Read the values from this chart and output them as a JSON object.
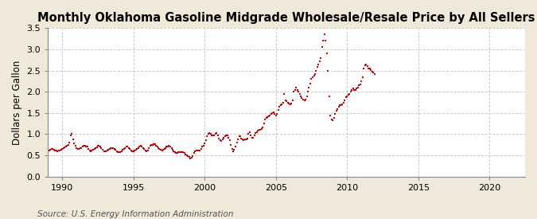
{
  "title": "Monthly Oklahoma Gasoline Midgrade Wholesale/Resale Price by All Sellers",
  "ylabel": "Dollars per Gallon",
  "source": "Source: U.S. Energy Information Administration",
  "xlim": [
    1989.0,
    2022.5
  ],
  "ylim": [
    0.0,
    3.5
  ],
  "xticks": [
    1990,
    1995,
    2000,
    2005,
    2010,
    2015,
    2020
  ],
  "yticks": [
    0.0,
    0.5,
    1.0,
    1.5,
    2.0,
    2.5,
    3.0,
    3.5
  ],
  "plot_bg_color": "#FFFFFF",
  "fig_bg_color": "#F0E8D8",
  "marker_color": "#CC0000",
  "marker": "s",
  "marker_size": 4,
  "grid_color": "#AAAAAA",
  "title_fontsize": 10.5,
  "ylabel_fontsize": 8.5,
  "source_fontsize": 7.5,
  "data": [
    [
      1989.08,
      0.62
    ],
    [
      1989.17,
      0.63
    ],
    [
      1989.25,
      0.65
    ],
    [
      1989.33,
      0.65
    ],
    [
      1989.42,
      0.63
    ],
    [
      1989.5,
      0.62
    ],
    [
      1989.58,
      0.62
    ],
    [
      1989.67,
      0.6
    ],
    [
      1989.75,
      0.61
    ],
    [
      1989.83,
      0.61
    ],
    [
      1989.92,
      0.63
    ],
    [
      1990.0,
      0.65
    ],
    [
      1990.08,
      0.68
    ],
    [
      1990.17,
      0.69
    ],
    [
      1990.25,
      0.71
    ],
    [
      1990.33,
      0.73
    ],
    [
      1990.42,
      0.75
    ],
    [
      1990.5,
      0.8
    ],
    [
      1990.58,
      0.98
    ],
    [
      1990.67,
      1.0
    ],
    [
      1990.75,
      0.87
    ],
    [
      1990.83,
      0.78
    ],
    [
      1990.92,
      0.72
    ],
    [
      1991.0,
      0.68
    ],
    [
      1991.08,
      0.66
    ],
    [
      1991.17,
      0.65
    ],
    [
      1991.25,
      0.67
    ],
    [
      1991.33,
      0.68
    ],
    [
      1991.42,
      0.7
    ],
    [
      1991.5,
      0.73
    ],
    [
      1991.58,
      0.73
    ],
    [
      1991.67,
      0.71
    ],
    [
      1991.75,
      0.7
    ],
    [
      1991.83,
      0.66
    ],
    [
      1991.92,
      0.62
    ],
    [
      1992.0,
      0.6
    ],
    [
      1992.08,
      0.62
    ],
    [
      1992.17,
      0.64
    ],
    [
      1992.25,
      0.65
    ],
    [
      1992.33,
      0.67
    ],
    [
      1992.42,
      0.69
    ],
    [
      1992.5,
      0.72
    ],
    [
      1992.58,
      0.72
    ],
    [
      1992.67,
      0.7
    ],
    [
      1992.75,
      0.68
    ],
    [
      1992.83,
      0.64
    ],
    [
      1992.92,
      0.6
    ],
    [
      1993.0,
      0.59
    ],
    [
      1993.08,
      0.6
    ],
    [
      1993.17,
      0.62
    ],
    [
      1993.25,
      0.64
    ],
    [
      1993.33,
      0.66
    ],
    [
      1993.42,
      0.68
    ],
    [
      1993.5,
      0.68
    ],
    [
      1993.58,
      0.68
    ],
    [
      1993.67,
      0.65
    ],
    [
      1993.75,
      0.63
    ],
    [
      1993.83,
      0.6
    ],
    [
      1993.92,
      0.58
    ],
    [
      1994.0,
      0.57
    ],
    [
      1994.08,
      0.58
    ],
    [
      1994.17,
      0.6
    ],
    [
      1994.25,
      0.63
    ],
    [
      1994.33,
      0.65
    ],
    [
      1994.42,
      0.68
    ],
    [
      1994.5,
      0.7
    ],
    [
      1994.58,
      0.7
    ],
    [
      1994.67,
      0.68
    ],
    [
      1994.75,
      0.65
    ],
    [
      1994.83,
      0.62
    ],
    [
      1994.92,
      0.6
    ],
    [
      1995.0,
      0.59
    ],
    [
      1995.08,
      0.61
    ],
    [
      1995.17,
      0.63
    ],
    [
      1995.25,
      0.65
    ],
    [
      1995.33,
      0.67
    ],
    [
      1995.42,
      0.7
    ],
    [
      1995.5,
      0.72
    ],
    [
      1995.58,
      0.71
    ],
    [
      1995.67,
      0.68
    ],
    [
      1995.75,
      0.65
    ],
    [
      1995.83,
      0.61
    ],
    [
      1995.92,
      0.59
    ],
    [
      1996.0,
      0.62
    ],
    [
      1996.08,
      0.67
    ],
    [
      1996.17,
      0.72
    ],
    [
      1996.25,
      0.74
    ],
    [
      1996.33,
      0.75
    ],
    [
      1996.42,
      0.76
    ],
    [
      1996.5,
      0.76
    ],
    [
      1996.58,
      0.73
    ],
    [
      1996.67,
      0.7
    ],
    [
      1996.75,
      0.68
    ],
    [
      1996.83,
      0.66
    ],
    [
      1996.92,
      0.63
    ],
    [
      1997.0,
      0.62
    ],
    [
      1997.08,
      0.64
    ],
    [
      1997.17,
      0.66
    ],
    [
      1997.25,
      0.68
    ],
    [
      1997.33,
      0.7
    ],
    [
      1997.42,
      0.71
    ],
    [
      1997.5,
      0.72
    ],
    [
      1997.58,
      0.7
    ],
    [
      1997.67,
      0.68
    ],
    [
      1997.75,
      0.64
    ],
    [
      1997.83,
      0.6
    ],
    [
      1997.92,
      0.57
    ],
    [
      1998.0,
      0.55
    ],
    [
      1998.08,
      0.55
    ],
    [
      1998.17,
      0.57
    ],
    [
      1998.25,
      0.58
    ],
    [
      1998.33,
      0.57
    ],
    [
      1998.42,
      0.57
    ],
    [
      1998.5,
      0.57
    ],
    [
      1998.58,
      0.55
    ],
    [
      1998.67,
      0.52
    ],
    [
      1998.75,
      0.5
    ],
    [
      1998.83,
      0.48
    ],
    [
      1998.92,
      0.46
    ],
    [
      1999.0,
      0.43
    ],
    [
      1999.08,
      0.44
    ],
    [
      1999.17,
      0.49
    ],
    [
      1999.25,
      0.56
    ],
    [
      1999.33,
      0.6
    ],
    [
      1999.42,
      0.62
    ],
    [
      1999.5,
      0.62
    ],
    [
      1999.58,
      0.62
    ],
    [
      1999.67,
      0.62
    ],
    [
      1999.75,
      0.65
    ],
    [
      1999.83,
      0.7
    ],
    [
      1999.92,
      0.72
    ],
    [
      2000.0,
      0.78
    ],
    [
      2000.08,
      0.85
    ],
    [
      2000.17,
      0.95
    ],
    [
      2000.25,
      1.0
    ],
    [
      2000.33,
      1.02
    ],
    [
      2000.42,
      1.0
    ],
    [
      2000.5,
      0.97
    ],
    [
      2000.58,
      0.97
    ],
    [
      2000.67,
      0.98
    ],
    [
      2000.75,
      1.0
    ],
    [
      2000.83,
      1.03
    ],
    [
      2000.92,
      0.98
    ],
    [
      2001.0,
      0.9
    ],
    [
      2001.08,
      0.85
    ],
    [
      2001.17,
      0.84
    ],
    [
      2001.25,
      0.88
    ],
    [
      2001.33,
      0.92
    ],
    [
      2001.42,
      0.96
    ],
    [
      2001.5,
      0.98
    ],
    [
      2001.58,
      0.97
    ],
    [
      2001.67,
      0.92
    ],
    [
      2001.75,
      0.85
    ],
    [
      2001.83,
      0.75
    ],
    [
      2001.92,
      0.65
    ],
    [
      2002.0,
      0.6
    ],
    [
      2002.08,
      0.63
    ],
    [
      2002.17,
      0.7
    ],
    [
      2002.25,
      0.8
    ],
    [
      2002.33,
      0.88
    ],
    [
      2002.42,
      0.95
    ],
    [
      2002.5,
      0.95
    ],
    [
      2002.58,
      0.9
    ],
    [
      2002.67,
      0.87
    ],
    [
      2002.75,
      0.85
    ],
    [
      2002.83,
      0.87
    ],
    [
      2002.92,
      0.88
    ],
    [
      2003.0,
      0.9
    ],
    [
      2003.08,
      1.0
    ],
    [
      2003.17,
      1.05
    ],
    [
      2003.25,
      0.98
    ],
    [
      2003.33,
      0.92
    ],
    [
      2003.42,
      0.92
    ],
    [
      2003.5,
      0.97
    ],
    [
      2003.58,
      1.02
    ],
    [
      2003.67,
      1.05
    ],
    [
      2003.75,
      1.08
    ],
    [
      2003.83,
      1.1
    ],
    [
      2003.92,
      1.1
    ],
    [
      2004.0,
      1.12
    ],
    [
      2004.08,
      1.15
    ],
    [
      2004.17,
      1.25
    ],
    [
      2004.25,
      1.35
    ],
    [
      2004.33,
      1.38
    ],
    [
      2004.42,
      1.4
    ],
    [
      2004.5,
      1.42
    ],
    [
      2004.58,
      1.45
    ],
    [
      2004.67,
      1.48
    ],
    [
      2004.75,
      1.5
    ],
    [
      2004.83,
      1.52
    ],
    [
      2004.92,
      1.48
    ],
    [
      2005.0,
      1.45
    ],
    [
      2005.08,
      1.48
    ],
    [
      2005.17,
      1.58
    ],
    [
      2005.25,
      1.65
    ],
    [
      2005.33,
      1.68
    ],
    [
      2005.42,
      1.7
    ],
    [
      2005.5,
      1.75
    ],
    [
      2005.58,
      1.95
    ],
    [
      2005.67,
      1.8
    ],
    [
      2005.75,
      1.78
    ],
    [
      2005.83,
      1.75
    ],
    [
      2005.92,
      1.72
    ],
    [
      2006.0,
      1.7
    ],
    [
      2006.08,
      1.72
    ],
    [
      2006.17,
      1.8
    ],
    [
      2006.25,
      2.0
    ],
    [
      2006.33,
      2.05
    ],
    [
      2006.42,
      2.1
    ],
    [
      2006.5,
      2.05
    ],
    [
      2006.58,
      2.0
    ],
    [
      2006.67,
      1.95
    ],
    [
      2006.75,
      1.9
    ],
    [
      2006.83,
      1.85
    ],
    [
      2006.92,
      1.82
    ],
    [
      2007.0,
      1.8
    ],
    [
      2007.08,
      1.82
    ],
    [
      2007.17,
      1.9
    ],
    [
      2007.25,
      2.0
    ],
    [
      2007.33,
      2.1
    ],
    [
      2007.42,
      2.2
    ],
    [
      2007.5,
      2.3
    ],
    [
      2007.58,
      2.35
    ],
    [
      2007.67,
      2.38
    ],
    [
      2007.75,
      2.42
    ],
    [
      2007.83,
      2.5
    ],
    [
      2007.92,
      2.58
    ],
    [
      2008.0,
      2.65
    ],
    [
      2008.08,
      2.72
    ],
    [
      2008.17,
      2.8
    ],
    [
      2008.25,
      3.05
    ],
    [
      2008.33,
      3.2
    ],
    [
      2008.42,
      3.35
    ],
    [
      2008.5,
      3.2
    ],
    [
      2008.58,
      2.9
    ],
    [
      2008.67,
      2.5
    ],
    [
      2008.75,
      1.9
    ],
    [
      2008.83,
      1.45
    ],
    [
      2008.92,
      1.35
    ],
    [
      2009.0,
      1.32
    ],
    [
      2009.08,
      1.38
    ],
    [
      2009.17,
      1.48
    ],
    [
      2009.25,
      1.55
    ],
    [
      2009.33,
      1.6
    ],
    [
      2009.42,
      1.65
    ],
    [
      2009.5,
      1.68
    ],
    [
      2009.58,
      1.68
    ],
    [
      2009.67,
      1.7
    ],
    [
      2009.75,
      1.75
    ],
    [
      2009.83,
      1.8
    ],
    [
      2009.92,
      1.88
    ],
    [
      2010.0,
      1.9
    ],
    [
      2010.08,
      1.92
    ],
    [
      2010.17,
      1.95
    ],
    [
      2010.25,
      2.0
    ],
    [
      2010.33,
      2.05
    ],
    [
      2010.42,
      2.08
    ],
    [
      2010.5,
      2.05
    ],
    [
      2010.58,
      2.05
    ],
    [
      2010.67,
      2.08
    ],
    [
      2010.75,
      2.1
    ],
    [
      2010.83,
      2.15
    ],
    [
      2010.92,
      2.18
    ],
    [
      2011.0,
      2.25
    ],
    [
      2011.08,
      2.35
    ],
    [
      2011.17,
      2.55
    ],
    [
      2011.25,
      2.62
    ],
    [
      2011.33,
      2.65
    ],
    [
      2011.42,
      2.6
    ],
    [
      2011.5,
      2.55
    ],
    [
      2011.58,
      2.55
    ],
    [
      2011.67,
      2.52
    ],
    [
      2011.75,
      2.48
    ],
    [
      2011.83,
      2.45
    ],
    [
      2011.92,
      2.42
    ]
  ]
}
